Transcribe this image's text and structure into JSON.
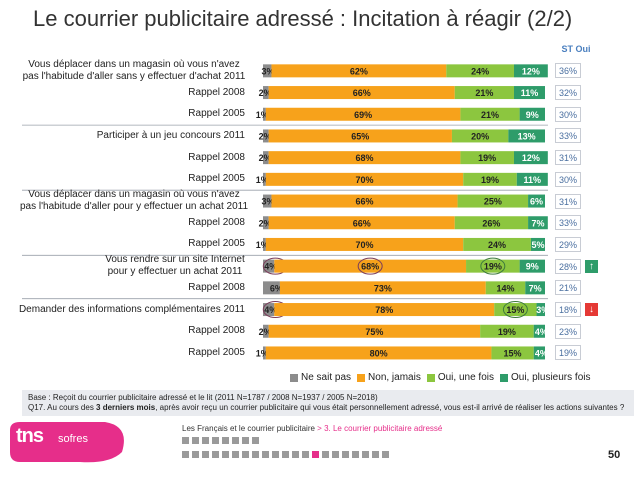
{
  "title": "Le courrier publicitaire adressé : Incitation à réagir (2/2)",
  "st_header": "ST Oui",
  "colors": {
    "ne_sait_pas": "#8c8c8c",
    "non_jamais": "#f7a21b",
    "oui_une_fois": "#8cc63f",
    "oui_plusieurs_fois": "#2e9c6a",
    "arrow_up": "#2e9c6a",
    "arrow_down": "#e53935",
    "logo_pink": "#e62e8a"
  },
  "chart_data": {
    "type": "bar",
    "orientation": "horizontal-stacked-100",
    "series_names": [
      "Ne sait pas",
      "Non, jamais",
      "Oui, une fois",
      "Oui, plusieurs fois"
    ],
    "rows": [
      {
        "label": "Vous déplacer dans un magasin où vous n'avez\npas l'habitude d'aller sans y effectuer d'achat 2011",
        "group": true,
        "values": [
          3,
          62,
          24,
          12
        ],
        "st": "36%"
      },
      {
        "label": "Rappel 2008",
        "values": [
          2,
          66,
          21,
          11
        ],
        "st": "32%"
      },
      {
        "label": "Rappel 2005",
        "values": [
          1,
          69,
          21,
          9
        ],
        "st": "30%"
      },
      {
        "label": "Participer à un jeu concours 2011",
        "group": true,
        "values": [
          2,
          65,
          20,
          13
        ],
        "st": "33%"
      },
      {
        "label": "Rappel 2008",
        "values": [
          2,
          68,
          19,
          12
        ],
        "st": "31%"
      },
      {
        "label": "Rappel 2005",
        "values": [
          1,
          70,
          19,
          11
        ],
        "st": "30%"
      },
      {
        "label": "Vous déplacer dans un magasin où vous n'avez\npas l'habitude d'aller pour y effectuer un achat 2011",
        "group": true,
        "values": [
          3,
          66,
          25,
          6
        ],
        "st": "31%"
      },
      {
        "label": "Rappel 2008",
        "values": [
          2,
          66,
          26,
          7
        ],
        "st": "33%"
      },
      {
        "label": "Rappel 2005",
        "values": [
          1,
          70,
          24,
          5
        ],
        "st": "29%"
      },
      {
        "label": "Vous rendre sur un site Internet\npour y effectuer un achat 2011",
        "group": true,
        "values": [
          4,
          68,
          19,
          9
        ],
        "st": "28%",
        "arrow": "up",
        "circled": [
          0,
          1,
          2
        ]
      },
      {
        "label": "Rappel 2008",
        "values": [
          6,
          73,
          14,
          7
        ],
        "st": "21%"
      },
      {
        "label": "Demander des informations complémentaires 2011",
        "group": true,
        "values": [
          4,
          78,
          15,
          3
        ],
        "st": "18%",
        "arrow": "down",
        "circled": [
          0,
          2
        ]
      },
      {
        "label": "Rappel 2008",
        "values": [
          2,
          75,
          19,
          4
        ],
        "st": "23%"
      },
      {
        "label": "Rappel 2005",
        "values": [
          1,
          80,
          15,
          4
        ],
        "st": "19%"
      }
    ],
    "value_suffix": "%",
    "legend_position": "bottom"
  },
  "footer": {
    "base": "Base : Reçoit du courrier publicitaire adressé et le lit (2011 N=1787 / 2008 N=1937 / 2005 N=2018)",
    "q_prefix": "Q17. Au cours des ",
    "q_bold": "3 derniers mois",
    "q_suffix": ", après avoir reçu un courrier publicitaire qui vous était personnellement adressé, vous est-il arrivé de réaliser les actions suivantes ?"
  },
  "brand": {
    "logo": "tns",
    "sub": "sofres"
  },
  "nav": {
    "section": "Les Français et le courrier publicitaire",
    "sep": " > ",
    "current": "3. Le courrier publicitaire adressé"
  },
  "page_number": "50"
}
